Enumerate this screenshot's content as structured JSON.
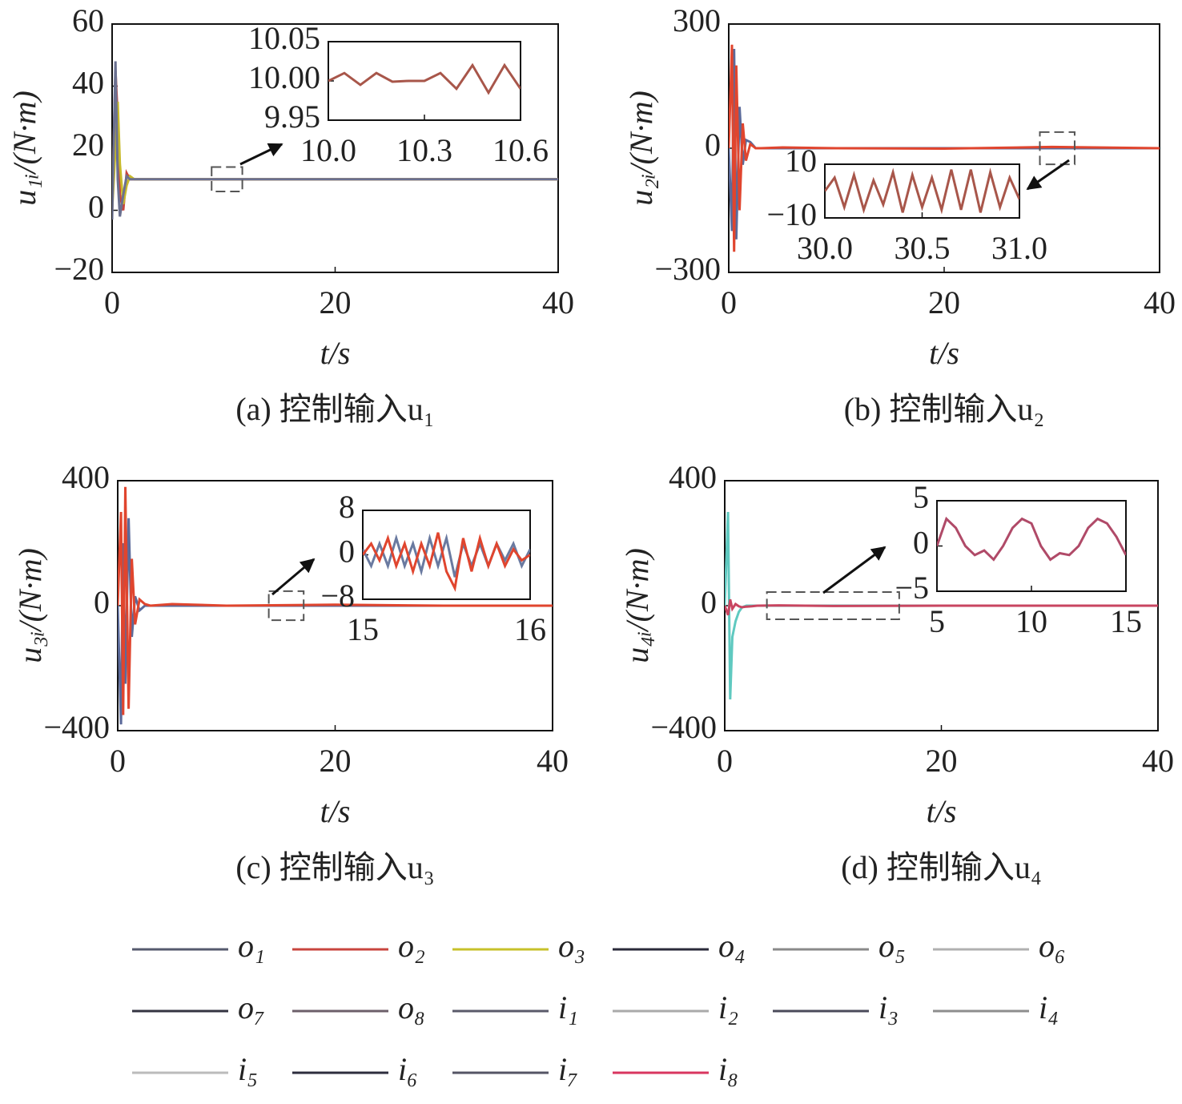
{
  "chart_data": [
    {
      "type": "line",
      "ylabel": "u₁ᵢ/(N·m)",
      "xlabel": "t/s",
      "caption": "(a) 控制输入u₁",
      "xlim": [
        0,
        40
      ],
      "xticks": [
        0,
        20,
        40
      ],
      "ylim": [
        -20,
        60
      ],
      "yticks": [
        {
          "value": -20,
          "label": "−20"
        },
        0,
        20,
        40,
        60
      ],
      "x": [
        0,
        0.3,
        0.5,
        0.7,
        1,
        1.3,
        1.6,
        2,
        2.5,
        3,
        5,
        10,
        20,
        30,
        40
      ],
      "series": [
        {
          "color": "#c8453e",
          "values": [
            0,
            45,
            30,
            5,
            0,
            12,
            10,
            10,
            10,
            10,
            10,
            10,
            10,
            10,
            10
          ]
        },
        {
          "color": "#c7b92a",
          "values": [
            0,
            20,
            35,
            15,
            2,
            8,
            11,
            10,
            10,
            10,
            10,
            10,
            10,
            10,
            10
          ]
        },
        {
          "color": "#6a7090",
          "values": [
            -3,
            48,
            10,
            -2,
            5,
            11,
            10,
            10,
            10,
            10,
            10,
            10,
            10,
            10,
            10
          ]
        }
      ],
      "inset": {
        "xlim": [
          10,
          10.6
        ],
        "xticks": [
          {
            "value": 10,
            "label": "10.0"
          },
          10.3,
          10.6
        ],
        "ylim": [
          9.95,
          10.05
        ],
        "yticks": [
          9.95,
          {
            "value": 10,
            "label": "10.00"
          },
          10.05
        ],
        "x": [
          10,
          10.05,
          10.1,
          10.15,
          10.2,
          10.25,
          10.3,
          10.35,
          10.4,
          10.45,
          10.5,
          10.55,
          10.6
        ],
        "series": [
          {
            "color": "#a8564a",
            "values": [
              10,
              10.01,
              9.995,
              10.01,
              9.999,
              10,
              10,
              10.01,
              9.99,
              10.02,
              9.985,
              10.02,
              9.99
            ]
          }
        ]
      }
    },
    {
      "type": "line",
      "ylabel": "u₂ᵢ/(N·m)",
      "xlabel": "t/s",
      "caption": "(b) 控制输入u₂",
      "xlim": [
        0,
        40
      ],
      "xticks": [
        0,
        20,
        40
      ],
      "ylim": [
        -300,
        300
      ],
      "yticks": [
        {
          "value": -300,
          "label": "−300"
        },
        0,
        300
      ],
      "x": [
        0,
        0.3,
        0.5,
        0.7,
        1,
        1.3,
        1.6,
        2,
        2.5,
        3,
        5,
        10,
        20,
        30,
        40
      ],
      "series": [
        {
          "color": "#5b6a9a",
          "values": [
            0,
            -200,
            240,
            -220,
            100,
            -40,
            20,
            15,
            0,
            0,
            0,
            0,
            0,
            0,
            0
          ]
        },
        {
          "color": "#e0452e",
          "values": [
            0,
            250,
            -250,
            200,
            -150,
            60,
            -30,
            10,
            0,
            0,
            2,
            0,
            -1,
            3,
            0
          ]
        }
      ],
      "inset": {
        "xlim": [
          30,
          31
        ],
        "xticks": [
          {
            "value": 30,
            "label": "30.0"
          },
          30.5,
          {
            "value": 31,
            "label": "31.0"
          }
        ],
        "ylim": [
          -10,
          10
        ],
        "yticks": [
          {
            "value": -10,
            "label": "−10"
          },
          10
        ],
        "x": [
          30,
          30.05,
          30.1,
          30.15,
          30.2,
          30.25,
          30.3,
          30.35,
          30.4,
          30.45,
          30.5,
          30.55,
          30.6,
          30.65,
          30.7,
          30.75,
          30.8,
          30.85,
          30.9,
          30.95,
          31
        ],
        "series": [
          {
            "color": "#a8564a",
            "values": [
              0,
              5,
              -6,
              6,
              -7,
              4,
              -5,
              7,
              -8,
              6,
              -6,
              5,
              -7,
              8,
              -7,
              8,
              -8,
              7,
              -6,
              5,
              -3
            ]
          }
        ]
      }
    },
    {
      "type": "line",
      "ylabel": "u₃ᵢ/(N·m)",
      "xlabel": "t/s",
      "caption": "(c) 控制输入u₃",
      "xlim": [
        0,
        40
      ],
      "xticks": [
        0,
        20,
        40
      ],
      "ylim": [
        -400,
        400
      ],
      "yticks": [
        {
          "value": -400,
          "label": "−400"
        },
        0,
        400
      ],
      "x": [
        0,
        0.3,
        0.5,
        0.7,
        1,
        1.3,
        1.6,
        2,
        2.5,
        3,
        5,
        10,
        20,
        30,
        40
      ],
      "series": [
        {
          "color": "#5b6a9a",
          "values": [
            0,
            -380,
            200,
            -250,
            280,
            -100,
            30,
            -15,
            0,
            0,
            0,
            0,
            0,
            0,
            0
          ]
        },
        {
          "color": "#e0452e",
          "values": [
            0,
            300,
            -350,
            380,
            -330,
            150,
            -60,
            20,
            5,
            0,
            5,
            0,
            3,
            0,
            0
          ]
        }
      ],
      "inset": {
        "xlim": [
          15,
          16
        ],
        "xticks": [
          15,
          16
        ],
        "ylim": [
          -8,
          8
        ],
        "yticks": [
          {
            "value": -8,
            "label": "−8"
          },
          0,
          8
        ],
        "x": [
          15,
          15.05,
          15.1,
          15.15,
          15.2,
          15.25,
          15.3,
          15.35,
          15.4,
          15.45,
          15.5,
          15.55,
          15.6,
          15.65,
          15.7,
          15.75,
          15.8,
          15.85,
          15.9,
          15.95,
          16
        ],
        "series": [
          {
            "color": "#6a7aa0",
            "values": [
              1,
              -2,
              2,
              -2,
              3,
              -2,
              2,
              -3,
              3,
              -2,
              3,
              -4,
              2,
              -2,
              2,
              -2,
              2,
              -1,
              2,
              -2,
              1
            ]
          },
          {
            "color": "#e0452e",
            "values": [
              0,
              2,
              -1,
              3,
              -2,
              2,
              -3,
              2,
              -2,
              4,
              -3,
              -6,
              3,
              -3,
              3,
              -2,
              2,
              -2,
              1,
              -1,
              0
            ]
          }
        ]
      }
    },
    {
      "type": "line",
      "ylabel": "u₄ᵢ/(N·m)",
      "xlabel": "t/s",
      "caption": "(d) 控制输入u₄",
      "xlim": [
        0,
        40
      ],
      "xticks": [
        0,
        20,
        40
      ],
      "ylim": [
        -400,
        400
      ],
      "yticks": [
        {
          "value": -400,
          "label": "−400"
        },
        0,
        400
      ],
      "x": [
        0,
        0.3,
        0.5,
        0.7,
        1,
        1.3,
        1.6,
        2,
        2.5,
        3,
        5,
        10,
        20,
        30,
        40
      ],
      "series": [
        {
          "color": "#5fc9c0",
          "values": [
            0,
            300,
            -300,
            -100,
            -50,
            -20,
            -5,
            0,
            0,
            0,
            0,
            0,
            0,
            0,
            0
          ]
        },
        {
          "color": "#c84560",
          "values": [
            0,
            -30,
            20,
            -10,
            5,
            -2,
            -5,
            -3,
            -2,
            0,
            1,
            -1,
            0,
            0,
            0
          ]
        }
      ],
      "inset": {
        "xlim": [
          5,
          15
        ],
        "xticks": [
          5,
          10,
          15
        ],
        "ylim": [
          -5,
          5
        ],
        "yticks": [
          {
            "value": -5,
            "label": "−5"
          },
          0,
          5
        ],
        "x": [
          5,
          5.5,
          6,
          6.5,
          7,
          7.5,
          8,
          8.5,
          9,
          9.5,
          10,
          10.5,
          11,
          11.5,
          12,
          12.5,
          13,
          13.5,
          14,
          14.5,
          15
        ],
        "series": [
          {
            "color": "#b04a68",
            "values": [
              0,
              3,
              2,
              0,
              -1,
              -0.5,
              -1.5,
              0,
              2,
              3,
              2.5,
              0,
              -1.5,
              -0.8,
              -1,
              0,
              2,
              3,
              2.5,
              1,
              -1
            ]
          }
        ]
      }
    }
  ],
  "legend": [
    {
      "name": "o₁",
      "color": "#555a6e"
    },
    {
      "name": "o₂",
      "color": "#c8453e"
    },
    {
      "name": "o₃",
      "color": "#c7c12a"
    },
    {
      "name": "o₄",
      "color": "#2a2a3a"
    },
    {
      "name": "o₅",
      "color": "#8a8a8a"
    },
    {
      "name": "o₆",
      "color": "#b0b0b0"
    },
    {
      "name": "o₇",
      "color": "#333340"
    },
    {
      "name": "o₈",
      "color": "#6c5f6a"
    },
    {
      "name": "i₁",
      "color": "#5a5a6a"
    },
    {
      "name": "i₂",
      "color": "#aaaaaa"
    },
    {
      "name": "i₃",
      "color": "#4a4a5a"
    },
    {
      "name": "i₄",
      "color": "#8d8d8d"
    },
    {
      "name": "i₅",
      "color": "#bbbbbb"
    },
    {
      "name": "i₆",
      "color": "#2d2d3d"
    },
    {
      "name": "i₇",
      "color": "#555565"
    },
    {
      "name": "i₈",
      "color": "#d8365f"
    }
  ]
}
